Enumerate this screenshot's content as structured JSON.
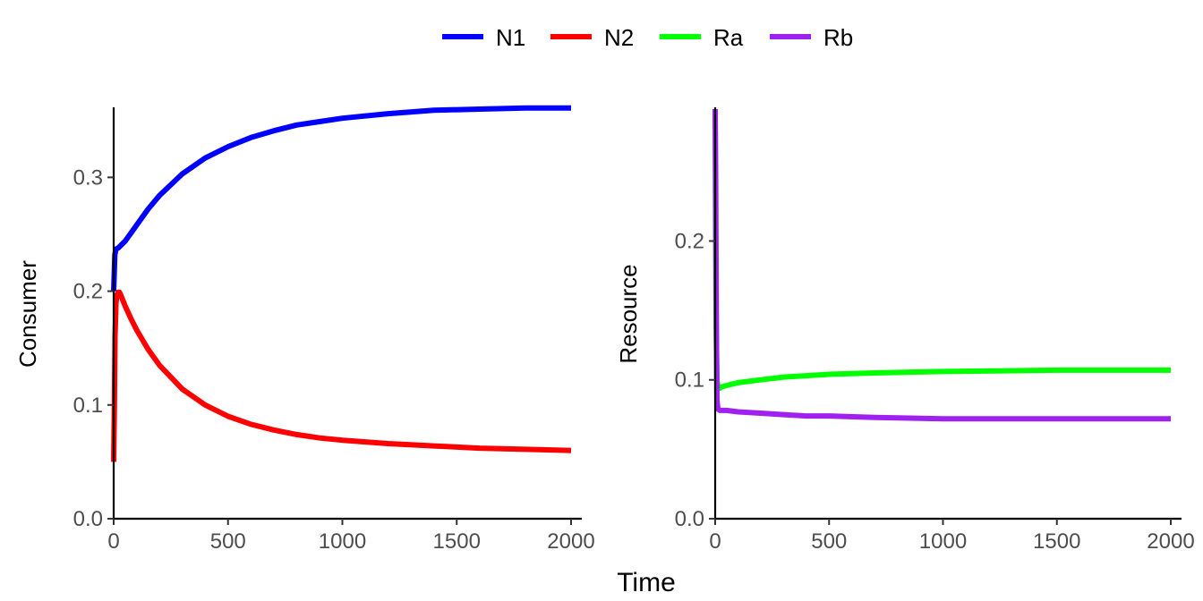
{
  "chart_data": {
    "type": "line",
    "xlabel": "Time",
    "legend": {
      "position": "top",
      "entries": [
        {
          "name": "N1",
          "color": "#0000ff"
        },
        {
          "name": "N2",
          "color": "#ff0000"
        },
        {
          "name": "Ra",
          "color": "#00ff00"
        },
        {
          "name": "Rb",
          "color": "#a020f0"
        }
      ]
    },
    "grid": false,
    "panels": [
      {
        "ylabel": "Consumer",
        "xlim": [
          0,
          2000
        ],
        "ylim": [
          0,
          0.36
        ],
        "xticks": [
          0,
          500,
          1000,
          1500,
          2000
        ],
        "xtick_labels": [
          "0",
          "500",
          "1000",
          "1500",
          "2000"
        ],
        "yticks": [
          0,
          0.1,
          0.2,
          0.3
        ],
        "ytick_labels": [
          "0.0",
          "0.1",
          "0.2",
          "0.3"
        ],
        "series": [
          {
            "name": "N1",
            "color": "#0000ff",
            "x": [
              0,
              5,
              10,
              20,
              30,
              50,
              75,
              100,
              150,
              200,
              300,
              400,
              500,
              600,
              700,
              800,
              900,
              1000,
              1200,
              1400,
              1600,
              1800,
              2000
            ],
            "y": [
              0.2,
              0.232,
              0.237,
              0.238,
              0.24,
              0.244,
              0.251,
              0.258,
              0.272,
              0.284,
              0.303,
              0.317,
              0.327,
              0.335,
              0.341,
              0.346,
              0.349,
              0.352,
              0.356,
              0.359,
              0.36,
              0.361,
              0.361
            ]
          },
          {
            "name": "N2",
            "color": "#ff0000",
            "x": [
              0,
              3,
              6,
              10,
              15,
              20,
              25,
              30,
              50,
              75,
              100,
              150,
              200,
              300,
              400,
              500,
              600,
              700,
              800,
              900,
              1000,
              1200,
              1400,
              1600,
              1800,
              2000
            ],
            "y": [
              0.05,
              0.1,
              0.16,
              0.19,
              0.197,
              0.199,
              0.199,
              0.197,
              0.187,
              0.176,
              0.166,
              0.149,
              0.135,
              0.114,
              0.1,
              0.09,
              0.083,
              0.078,
              0.074,
              0.071,
              0.069,
              0.066,
              0.064,
              0.062,
              0.061,
              0.06
            ]
          }
        ]
      },
      {
        "ylabel": "Resource",
        "xlim": [
          0,
          2000
        ],
        "ylim": [
          0,
          0.295
        ],
        "xticks": [
          0,
          500,
          1000,
          1500,
          2000
        ],
        "xtick_labels": [
          "0",
          "500",
          "1000",
          "1500",
          "2000"
        ],
        "yticks": [
          0,
          0.1,
          0.2
        ],
        "ytick_labels": [
          "0.0",
          "0.1",
          "0.2"
        ],
        "series": [
          {
            "name": "Ra",
            "color": "#00ff00",
            "x": [
              0,
              2,
              4,
              8,
              12,
              20,
              30,
              50,
              100,
              200,
              300,
              400,
              500,
              700,
              1000,
              1500,
              2000
            ],
            "y": [
              0.29,
              0.2,
              0.14,
              0.1,
              0.095,
              0.094,
              0.095,
              0.096,
              0.098,
              0.1,
              0.102,
              0.103,
              0.104,
              0.105,
              0.106,
              0.107,
              0.107
            ]
          },
          {
            "name": "Rb",
            "color": "#a020f0",
            "x": [
              0,
              2,
              4,
              6,
              8,
              12,
              20,
              30,
              50,
              100,
              200,
              300,
              400,
              500,
              700,
              1000,
              1500,
              2000
            ],
            "y": [
              0.295,
              0.25,
              0.18,
              0.12,
              0.085,
              0.079,
              0.078,
              0.078,
              0.078,
              0.077,
              0.076,
              0.075,
              0.074,
              0.074,
              0.073,
              0.072,
              0.072,
              0.072
            ]
          }
        ]
      }
    ]
  }
}
